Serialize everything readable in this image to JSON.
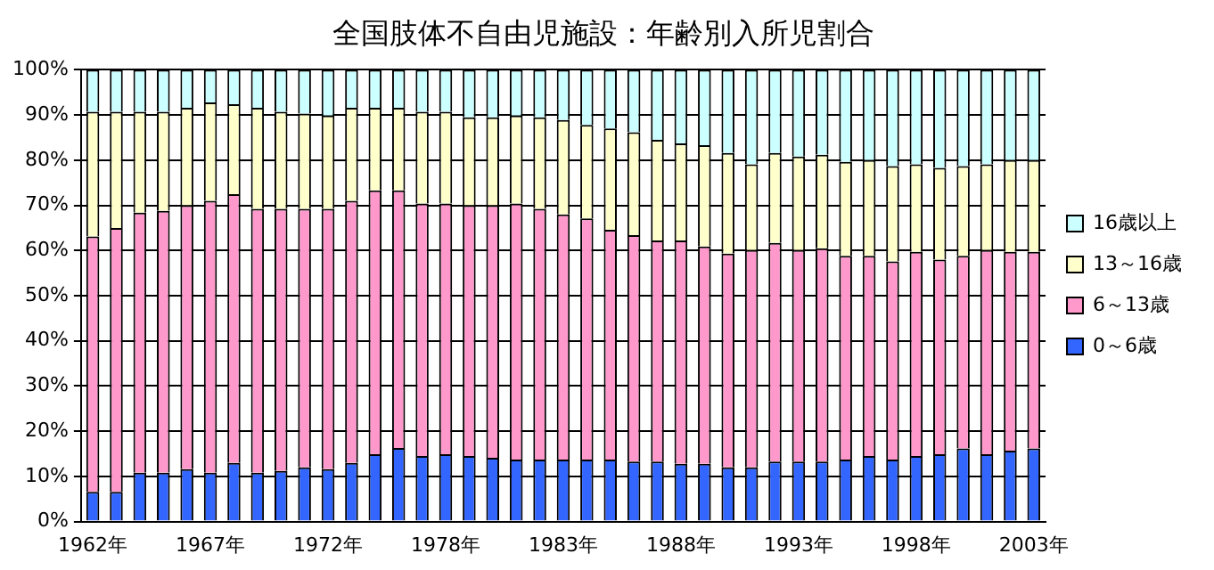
{
  "chart_data": {
    "type": "bar",
    "title": "全国肢体不自由児施設：年齢別入所児割合",
    "stacked": true,
    "categories": [
      "1962年",
      null,
      null,
      null,
      null,
      "1967年",
      null,
      null,
      null,
      null,
      "1972年",
      null,
      null,
      null,
      null,
      "1978年",
      null,
      null,
      null,
      null,
      "1983年",
      null,
      null,
      null,
      null,
      "1988年",
      null,
      null,
      null,
      null,
      "1993年",
      null,
      null,
      null,
      null,
      "1998年",
      null,
      null,
      null,
      null,
      "2003年"
    ],
    "ylim": [
      0,
      100
    ],
    "yticks": [
      {
        "value": 0,
        "label": "0%"
      },
      {
        "value": 10,
        "label": "10%"
      },
      {
        "value": 20,
        "label": "20%"
      },
      {
        "value": 30,
        "label": "30%"
      },
      {
        "value": 40,
        "label": "40%"
      },
      {
        "value": 50,
        "label": "50%"
      },
      {
        "value": 60,
        "label": "60%"
      },
      {
        "value": 70,
        "label": "70%"
      },
      {
        "value": 80,
        "label": "80%"
      },
      {
        "value": 90,
        "label": "90%"
      },
      {
        "value": 100,
        "label": "100%"
      }
    ],
    "grid": "y",
    "legend": "right",
    "series": [
      {
        "name": "0～6歳",
        "color": "#3366ff",
        "values": [
          6.6,
          6.6,
          10.8,
          10.8,
          11.6,
          10.8,
          13.0,
          10.8,
          11.2,
          12.0,
          11.6,
          13.0,
          14.9,
          16.3,
          14.5,
          14.9,
          14.5,
          14.1,
          13.7,
          13.7,
          13.7,
          13.7,
          13.7,
          13.3,
          13.3,
          12.8,
          12.8,
          12.0,
          12.0,
          13.3,
          13.3,
          13.3,
          13.7,
          14.5,
          13.7,
          14.5,
          14.9,
          16.2,
          14.9,
          15.7,
          16.2
        ]
      },
      {
        "name": "6～13歳",
        "color": "#ff99cc",
        "values": [
          56.5,
          58.4,
          57.6,
          58.0,
          58.4,
          60.2,
          59.5,
          58.4,
          58.0,
          57.2,
          57.6,
          58.0,
          58.4,
          57.0,
          55.9,
          55.5,
          55.5,
          55.9,
          56.7,
          55.5,
          54.3,
          53.4,
          50.9,
          50.1,
          48.9,
          49.4,
          48.1,
          47.3,
          48.1,
          48.4,
          46.8,
          47.2,
          45.1,
          44.3,
          43.9,
          45.2,
          43.1,
          42.6,
          45.2,
          44.0,
          43.5
        ]
      },
      {
        "name": "13～16歳",
        "color": "#ffffcc",
        "values": [
          27.6,
          25.7,
          22.3,
          21.9,
          21.6,
          21.8,
          19.9,
          22.4,
          21.5,
          21.1,
          20.7,
          20.6,
          18.3,
          18.3,
          20.3,
          20.3,
          19.5,
          19.5,
          19.5,
          20.3,
          20.9,
          20.7,
          22.4,
          22.8,
          22.3,
          21.5,
          22.4,
          22.3,
          19.0,
          19.9,
          20.7,
          20.7,
          20.8,
          21.2,
          21.1,
          19.4,
          20.3,
          19.9,
          19.0,
          20.3,
          20.3
        ]
      },
      {
        "name": "16歳以上",
        "color": "#ccffff",
        "values": [
          9.3,
          9.3,
          9.3,
          9.3,
          8.4,
          7.2,
          7.6,
          8.4,
          9.3,
          9.7,
          10.1,
          8.4,
          8.4,
          8.4,
          9.3,
          9.3,
          10.5,
          10.5,
          10.1,
          10.5,
          11.1,
          12.2,
          13.0,
          13.8,
          15.5,
          16.3,
          16.7,
          18.4,
          20.9,
          18.4,
          19.2,
          18.8,
          20.4,
          20.0,
          21.3,
          20.9,
          21.7,
          21.3,
          20.9,
          20.0,
          20.0
        ]
      }
    ]
  }
}
